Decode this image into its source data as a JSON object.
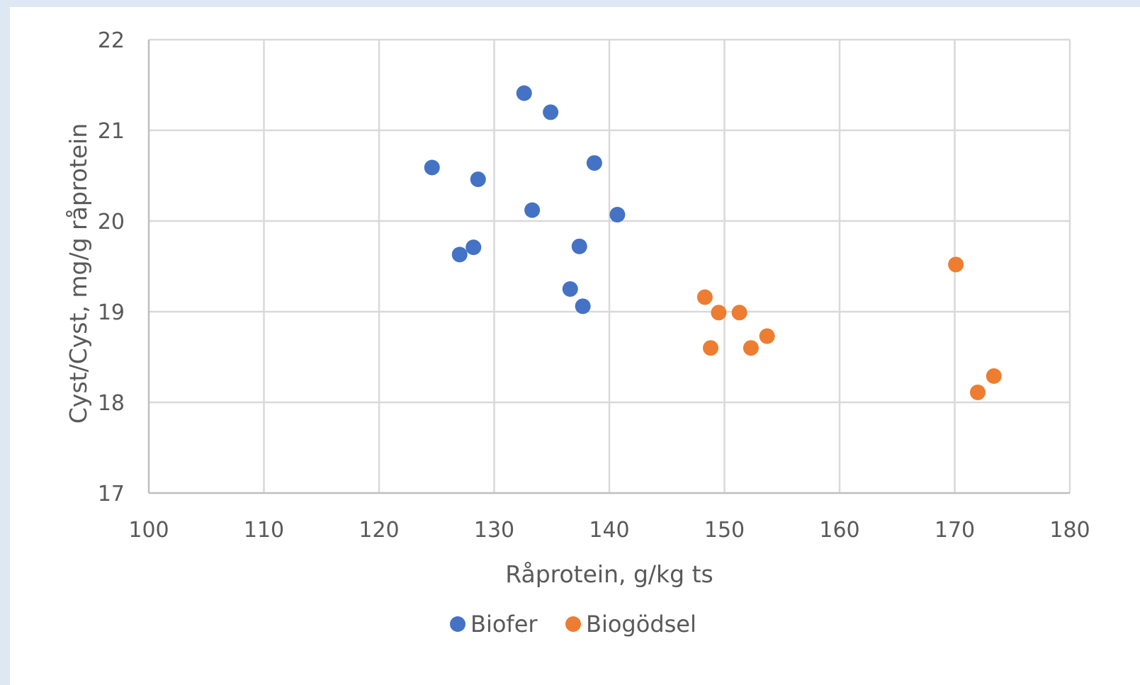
{
  "chart_data": {
    "type": "scatter",
    "xlabel": "Råprotein, g/kg ts",
    "ylabel": "Cyst/Cyst, mg/g råprotein",
    "xlim": [
      100,
      180
    ],
    "ylim": [
      17,
      22
    ],
    "x_ticks": [
      100,
      110,
      120,
      130,
      140,
      150,
      160,
      170,
      180
    ],
    "y_ticks": [
      17,
      18,
      19,
      20,
      21,
      22
    ],
    "grid": true,
    "legend_position": "bottom",
    "series": [
      {
        "name": "Biofer",
        "color": "#4472c4",
        "points": [
          {
            "x": 124.6,
            "y": 20.59
          },
          {
            "x": 128.6,
            "y": 20.46
          },
          {
            "x": 127.0,
            "y": 19.63
          },
          {
            "x": 128.2,
            "y": 19.71
          },
          {
            "x": 132.6,
            "y": 21.41
          },
          {
            "x": 134.9,
            "y": 21.2
          },
          {
            "x": 133.3,
            "y": 20.12
          },
          {
            "x": 138.7,
            "y": 20.64
          },
          {
            "x": 140.7,
            "y": 20.07
          },
          {
            "x": 137.4,
            "y": 19.72
          },
          {
            "x": 136.6,
            "y": 19.25
          },
          {
            "x": 137.7,
            "y": 19.06
          }
        ]
      },
      {
        "name": "Biogödsel",
        "color": "#ed7d31",
        "points": [
          {
            "x": 148.3,
            "y": 19.16
          },
          {
            "x": 149.5,
            "y": 18.99
          },
          {
            "x": 151.3,
            "y": 18.99
          },
          {
            "x": 148.8,
            "y": 18.6
          },
          {
            "x": 152.3,
            "y": 18.6
          },
          {
            "x": 153.7,
            "y": 18.73
          },
          {
            "x": 170.1,
            "y": 19.52
          },
          {
            "x": 173.4,
            "y": 18.29
          },
          {
            "x": 172.0,
            "y": 18.11
          }
        ]
      }
    ]
  }
}
